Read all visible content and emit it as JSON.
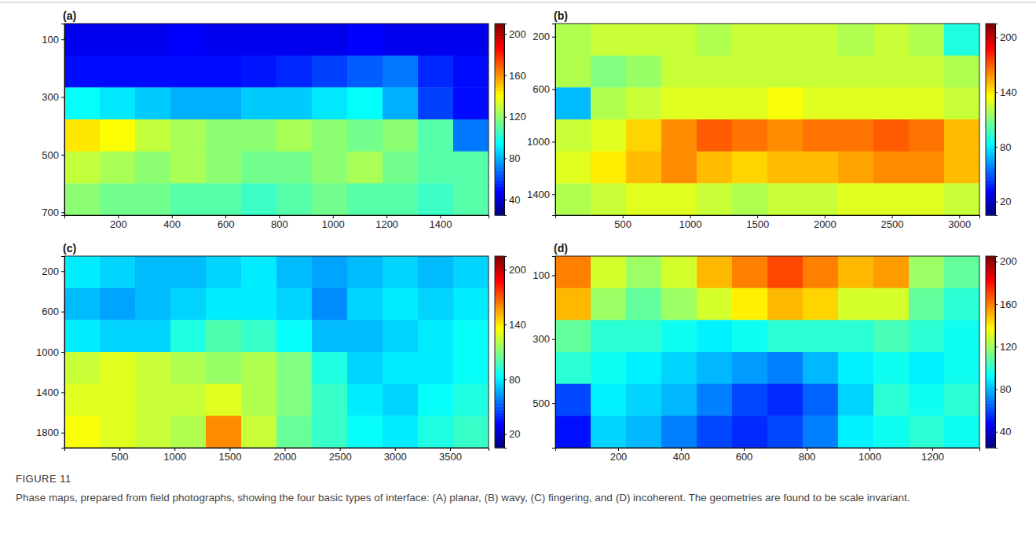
{
  "figure": {
    "label": "FIGURE 11",
    "caption": "Phase maps, prepared from field photographs, showing the four basic types of interface: (A) planar, (B) wavy, (C) fingering, and (D) incoherent. The geometries are found to be scale invariant."
  },
  "chart_data": [
    {
      "type": "heatmap",
      "panel": "(a)",
      "xlim": [
        0,
        1580
      ],
      "ylim": [
        45,
        710
      ],
      "xticks": [
        200,
        400,
        600,
        800,
        1000,
        1200,
        1400
      ],
      "yticks": [
        100,
        300,
        500,
        700
      ],
      "color_range": [
        25,
        210
      ],
      "color_ticks": [
        40,
        80,
        120,
        160,
        200
      ],
      "cells": [
        [
          45,
          45,
          45,
          48,
          45,
          45,
          45,
          45,
          48,
          45,
          45,
          45
        ],
        [
          50,
          50,
          50,
          50,
          50,
          52,
          55,
          60,
          65,
          70,
          55,
          50
        ],
        [
          95,
          90,
          85,
          80,
          80,
          85,
          85,
          90,
          95,
          80,
          60,
          50
        ],
        [
          145,
          140,
          130,
          125,
          120,
          120,
          125,
          120,
          115,
          120,
          110,
          70
        ],
        [
          130,
          125,
          120,
          125,
          120,
          115,
          115,
          120,
          125,
          115,
          110,
          110
        ],
        [
          120,
          115,
          115,
          110,
          110,
          105,
          110,
          115,
          110,
          110,
          105,
          110
        ]
      ]
    },
    {
      "type": "heatmap",
      "panel": "(b)",
      "xlim": [
        0,
        3150
      ],
      "ylim": [
        100,
        1560
      ],
      "xticks": [
        500,
        1000,
        1500,
        2000,
        2500,
        3000
      ],
      "yticks": [
        200,
        600,
        1000,
        1400
      ],
      "color_range": [
        5,
        215
      ],
      "color_ticks": [
        20,
        80,
        140,
        200
      ],
      "cells": [
        [
          120,
          125,
          125,
          125,
          120,
          125,
          125,
          125,
          120,
          125,
          120,
          90
        ],
        [
          120,
          110,
          115,
          125,
          125,
          125,
          125,
          125,
          125,
          125,
          125,
          120
        ],
        [
          70,
          120,
          125,
          130,
          130,
          130,
          135,
          130,
          130,
          130,
          130,
          125
        ],
        [
          125,
          130,
          145,
          160,
          170,
          165,
          160,
          165,
          165,
          170,
          165,
          150
        ],
        [
          130,
          140,
          150,
          160,
          150,
          145,
          150,
          150,
          155,
          160,
          160,
          150
        ],
        [
          120,
          125,
          130,
          130,
          125,
          120,
          125,
          125,
          130,
          130,
          130,
          125
        ]
      ]
    },
    {
      "type": "heatmap",
      "panel": "(c)",
      "xlim": [
        0,
        3850
      ],
      "ylim": [
        50,
        1950
      ],
      "xticks": [
        500,
        1000,
        1500,
        2000,
        2500,
        3000,
        3500
      ],
      "yticks": [
        200,
        600,
        1000,
        1400,
        1800
      ],
      "color_range": [
        5,
        215
      ],
      "color_ticks": [
        20,
        80,
        140,
        200
      ],
      "cells": [
        [
          80,
          75,
          70,
          70,
          75,
          80,
          70,
          65,
          70,
          75,
          70,
          75
        ],
        [
          70,
          65,
          70,
          75,
          80,
          80,
          75,
          60,
          75,
          80,
          75,
          80
        ],
        [
          80,
          75,
          75,
          90,
          100,
          95,
          85,
          70,
          70,
          75,
          80,
          85
        ],
        [
          125,
          130,
          125,
          120,
          115,
          120,
          110,
          90,
          75,
          80,
          80,
          85
        ],
        [
          130,
          130,
          125,
          125,
          130,
          120,
          110,
          95,
          80,
          75,
          85,
          90
        ],
        [
          135,
          130,
          125,
          120,
          160,
          125,
          105,
          95,
          85,
          80,
          90,
          95
        ]
      ]
    },
    {
      "type": "heatmap",
      "panel": "(d)",
      "xlim": [
        0,
        1350
      ],
      "ylim": [
        40,
        640
      ],
      "xticks": [
        200,
        400,
        600,
        800,
        1000,
        1200
      ],
      "yticks": [
        100,
        300,
        500
      ],
      "color_range": [
        25,
        205
      ],
      "color_ticks": [
        40,
        80,
        120,
        160,
        200
      ],
      "cells": [
        [
          160,
          130,
          120,
          130,
          150,
          160,
          170,
          160,
          150,
          155,
          120,
          110
        ],
        [
          150,
          120,
          110,
          120,
          130,
          140,
          150,
          145,
          130,
          130,
          110,
          100
        ],
        [
          110,
          100,
          100,
          95,
          90,
          95,
          100,
          100,
          100,
          105,
          100,
          95
        ],
        [
          100,
          95,
          90,
          85,
          80,
          75,
          70,
          80,
          90,
          95,
          90,
          95
        ],
        [
          60,
          90,
          85,
          80,
          70,
          60,
          55,
          65,
          85,
          100,
          95,
          100
        ],
        [
          50,
          85,
          80,
          70,
          60,
          55,
          60,
          70,
          90,
          95,
          100,
          95
        ]
      ]
    }
  ]
}
